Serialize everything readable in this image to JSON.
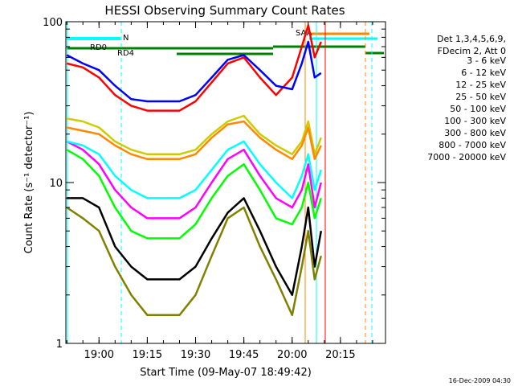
{
  "chart_data": {
    "type": "line",
    "title": "HESSI Observing Summary Count Rates",
    "xlabel": "Start Time (09-May-07 18:49:42)",
    "ylabel": "Count Rate (s⁻¹ detector⁻¹)",
    "ylog": true,
    "ylim": [
      1,
      100
    ],
    "xlim": [
      "18:49:42",
      "20:29:00"
    ],
    "x_ticks": [
      "19:00",
      "19:15",
      "19:30",
      "19:45",
      "20:00",
      "20:15"
    ],
    "y_ticks": [
      "1",
      "10",
      "100"
    ],
    "x": [
      "18:50",
      "18:55",
      "19:00",
      "19:05",
      "19:10",
      "19:15",
      "19:20",
      "19:25",
      "19:30",
      "19:35",
      "19:40",
      "19:45",
      "19:50",
      "19:55",
      "20:00",
      "20:03",
      "20:05",
      "20:07",
      "20:09"
    ],
    "legend_header": [
      "Det 1,3,4,5,6,9,",
      "FDecim 2, Att 0"
    ],
    "series": [
      {
        "name": "3 - 6 keV",
        "color": "#000000",
        "values": [
          8,
          8,
          7,
          4,
          3,
          2.5,
          2.5,
          2.5,
          3,
          4.5,
          6.5,
          8,
          5,
          3,
          2,
          4,
          7,
          3,
          5
        ]
      },
      {
        "name": "6 - 12 keV",
        "color": "#ff00ff",
        "values": [
          18,
          16,
          13,
          9,
          7,
          6,
          6,
          6,
          7,
          10,
          14,
          16,
          11,
          8,
          7,
          9,
          13,
          7,
          10
        ]
      },
      {
        "name": "12 - 25 keV",
        "color": "#00ff00",
        "values": [
          16,
          14,
          11,
          7,
          5,
          4.5,
          4.5,
          4.5,
          5.5,
          8,
          11,
          13,
          9,
          6,
          5.5,
          7,
          10,
          6,
          8
        ]
      },
      {
        "name": "25 - 50 keV",
        "color": "#00ffff",
        "values": [
          18,
          17,
          15,
          11,
          9,
          8,
          8,
          8,
          9,
          12,
          16,
          18,
          13,
          10,
          8,
          11,
          15,
          9,
          12
        ]
      },
      {
        "name": "50 - 100 keV",
        "color": "#cccc00",
        "values": [
          25,
          24,
          22,
          18,
          16,
          15,
          15,
          15,
          16,
          20,
          24,
          26,
          20,
          17,
          15,
          18,
          24,
          15,
          19
        ]
      },
      {
        "name": "100 - 300 keV",
        "color": "#ff0000",
        "values": [
          55,
          52,
          45,
          35,
          30,
          28,
          28,
          28,
          32,
          42,
          55,
          60,
          45,
          35,
          45,
          70,
          95,
          60,
          75
        ]
      },
      {
        "name": "300 - 800 keV",
        "color": "#0000ff",
        "values": [
          62,
          55,
          50,
          40,
          33,
          32,
          32,
          32,
          35,
          45,
          58,
          62,
          50,
          40,
          38,
          55,
          75,
          45,
          48
        ]
      },
      {
        "name": "800 - 7000 keV",
        "color": "#ff8800",
        "values": [
          22,
          21,
          20,
          17,
          15,
          14,
          14,
          14,
          15,
          19,
          23,
          24,
          19,
          16,
          14,
          17,
          22,
          14,
          17
        ]
      },
      {
        "name": "7000 - 20000 keV",
        "color": "#808000",
        "values": [
          7,
          6,
          5,
          3,
          2,
          1.5,
          1.5,
          1.5,
          2,
          3.5,
          6,
          7,
          4,
          2.5,
          1.5,
          3,
          5,
          2.5,
          3.5
        ]
      }
    ],
    "annotations": [
      "N",
      "RD0",
      "RD4",
      "SAA"
    ],
    "footer": "16-Dec-2009 04:30"
  }
}
